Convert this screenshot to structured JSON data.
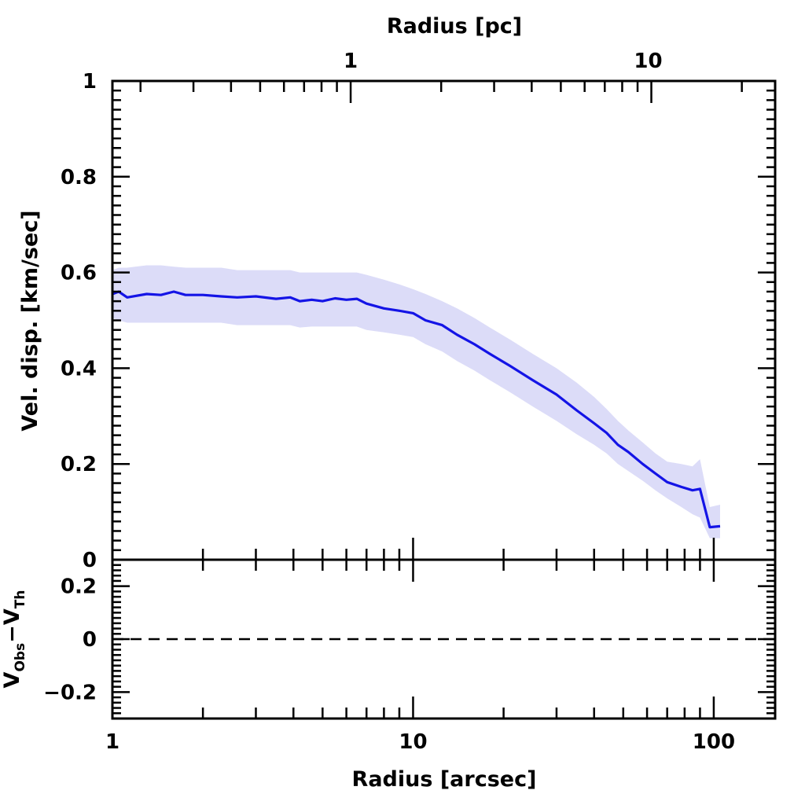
{
  "chart_data": [
    {
      "type": "line",
      "panel": "main",
      "x_scale": "log",
      "xlim": [
        1,
        160
      ],
      "ylim": [
        0,
        1
      ],
      "xlabel_top": "Radius [pc]",
      "ylabel": "Vel. disp. [km/sec]",
      "x_top_tick_labels": [
        "1",
        "10"
      ],
      "x_top_tick_values_arcsec": [
        6.2,
        60.5
      ],
      "y_tick_labels": [
        "0",
        "0.2",
        "0.4",
        "0.6",
        "0.8",
        "1"
      ],
      "y_tick_values": [
        0,
        0.2,
        0.4,
        0.6,
        0.8,
        1
      ],
      "line_color": "#1414e6",
      "band_color": "#dcdcf8",
      "series": [
        {
          "name": "Velocity dispersion",
          "x": [
            1.0,
            1.05,
            1.12,
            1.3,
            1.45,
            1.6,
            1.75,
            2.0,
            2.3,
            2.6,
            3.0,
            3.5,
            3.9,
            4.2,
            4.6,
            5.0,
            5.5,
            6.0,
            6.5,
            7.0,
            8.0,
            9.0,
            10.0,
            11.0,
            12.5,
            14.0,
            16.0,
            18.0,
            21.0,
            25.0,
            30.0,
            35.0,
            40.0,
            44.0,
            48.0,
            52.0,
            58.0,
            64.0,
            70.0,
            78.0,
            85.0,
            90.0,
            97.0,
            105.0
          ],
          "y": [
            0.555,
            0.56,
            0.548,
            0.555,
            0.553,
            0.56,
            0.553,
            0.553,
            0.55,
            0.548,
            0.55,
            0.545,
            0.548,
            0.54,
            0.543,
            0.54,
            0.546,
            0.543,
            0.545,
            0.535,
            0.525,
            0.52,
            0.515,
            0.5,
            0.49,
            0.47,
            0.45,
            0.43,
            0.405,
            0.375,
            0.345,
            0.312,
            0.285,
            0.265,
            0.24,
            0.225,
            0.2,
            0.18,
            0.162,
            0.152,
            0.145,
            0.148,
            0.068,
            0.07
          ],
          "lower": [
            0.505,
            0.5,
            0.495,
            0.495,
            0.495,
            0.495,
            0.495,
            0.495,
            0.495,
            0.49,
            0.49,
            0.49,
            0.49,
            0.485,
            0.487,
            0.487,
            0.487,
            0.487,
            0.487,
            0.48,
            0.475,
            0.47,
            0.465,
            0.45,
            0.435,
            0.415,
            0.395,
            0.375,
            0.35,
            0.32,
            0.29,
            0.262,
            0.24,
            0.222,
            0.2,
            0.185,
            0.165,
            0.145,
            0.128,
            0.11,
            0.095,
            0.088,
            0.045,
            0.045
          ],
          "upper": [
            0.605,
            0.61,
            0.61,
            0.615,
            0.615,
            0.612,
            0.61,
            0.61,
            0.61,
            0.605,
            0.605,
            0.605,
            0.605,
            0.6,
            0.6,
            0.6,
            0.6,
            0.6,
            0.6,
            0.595,
            0.585,
            0.575,
            0.565,
            0.555,
            0.54,
            0.525,
            0.505,
            0.485,
            0.46,
            0.43,
            0.4,
            0.37,
            0.34,
            0.315,
            0.29,
            0.27,
            0.245,
            0.222,
            0.205,
            0.2,
            0.195,
            0.21,
            0.11,
            0.115
          ]
        }
      ]
    },
    {
      "type": "line",
      "panel": "residual",
      "x_scale": "log",
      "xlim": [
        1,
        160
      ],
      "ylim": [
        -0.3,
        0.3
      ],
      "xlabel": "Radius [arcsec]",
      "ylabel": "V",
      "ylabel_sub_1": "Obs",
      "ylabel_minus": "−V",
      "ylabel_sub_2": "Th",
      "x_tick_labels": [
        "1",
        "10",
        "100"
      ],
      "x_tick_values": [
        1,
        10,
        100
      ],
      "y_tick_labels": [
        "−0.2",
        "0",
        "0.2"
      ],
      "y_tick_values": [
        -0.2,
        0,
        0.2
      ],
      "series": [
        {
          "name": "zero reference",
          "style": "dashed",
          "x": [
            1,
            160
          ],
          "y": [
            0,
            0
          ]
        }
      ]
    }
  ]
}
